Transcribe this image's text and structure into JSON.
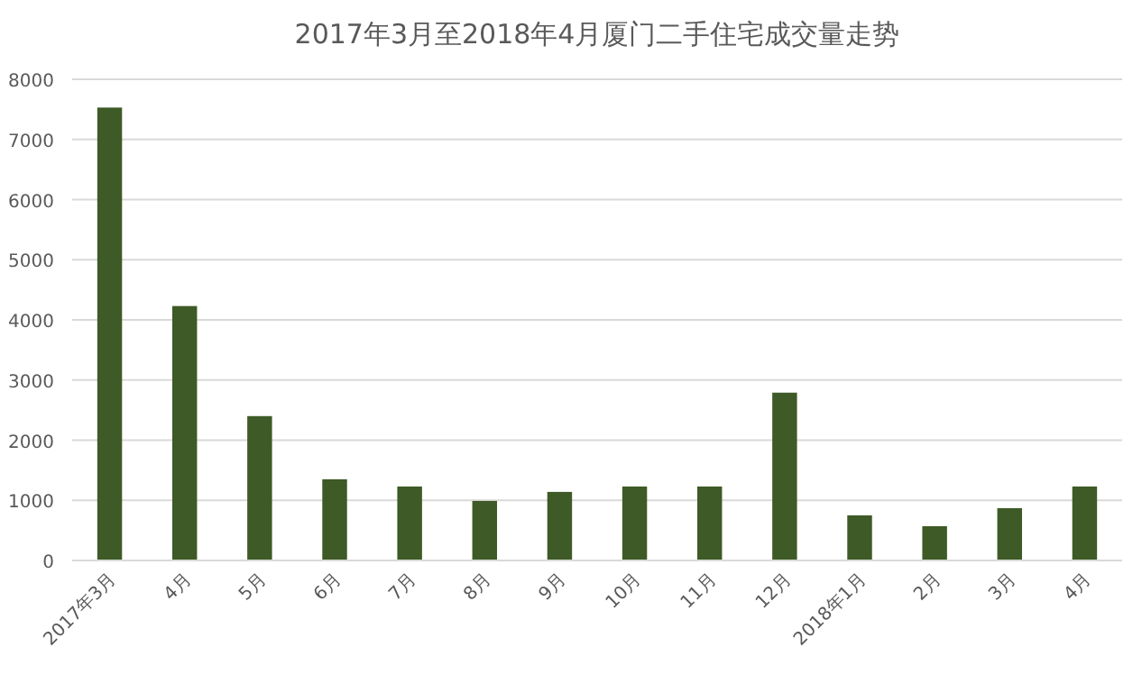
{
  "chart_data": {
    "type": "bar",
    "title": "2017年3月至2018年4月厦门二手住宅成交量走势",
    "categories": [
      "2017年3月",
      "4月",
      "5月",
      "6月",
      "7月",
      "8月",
      "9月",
      "10月",
      "11月",
      "12月",
      "2018年1月",
      "2月",
      "3月",
      "4月"
    ],
    "values": [
      7530,
      4230,
      2400,
      1350,
      1230,
      990,
      1140,
      1230,
      1230,
      2790,
      750,
      570,
      870,
      1230
    ],
    "color": "#3e5a26",
    "ylim": [
      0,
      8000
    ],
    "yticks": [
      0,
      1000,
      2000,
      3000,
      4000,
      5000,
      6000,
      7000,
      8000
    ],
    "grid": "y"
  }
}
